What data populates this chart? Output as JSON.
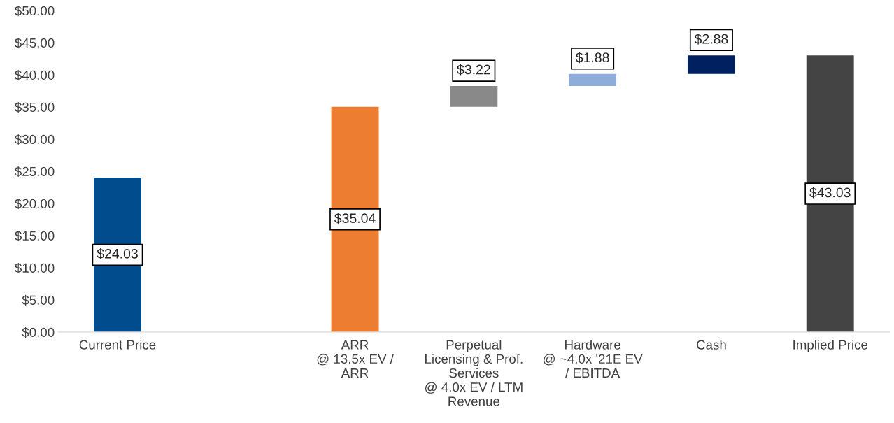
{
  "chart_data": {
    "type": "bar",
    "categories": [
      "Current Price",
      null,
      "ARR\n@ 13.5x EV /\nARR",
      "Perpetual\nLicensing & Prof.\nServices\n@ 4.0x EV / LTM\nRevenue",
      "Hardware\n@ ~4.0x '21E EV\n/ EBITDA",
      "Cash",
      "Implied Price"
    ],
    "values": [
      24.03,
      null,
      35.04,
      3.22,
      1.88,
      2.88,
      43.03
    ],
    "base": [
      0,
      null,
      0,
      35.04,
      38.26,
      40.14,
      0
    ],
    "colors": [
      "#004c8c",
      "#ffffff",
      "#ed7d31",
      "#898989",
      "#8eadd9",
      "#002060",
      "#444444"
    ],
    "value_labels": [
      "$24.03",
      null,
      "$35.04",
      "$3.22",
      "$1.88",
      "$2.88",
      "$43.03"
    ],
    "ylim": [
      0,
      50
    ],
    "yticks": [
      {
        "value": 0,
        "label": "$0.00"
      },
      {
        "value": 5,
        "label": "$5.00"
      },
      {
        "value": 10,
        "label": "$10.00"
      },
      {
        "value": 15,
        "label": "$15.00"
      },
      {
        "value": 20,
        "label": "$20.00"
      },
      {
        "value": 25,
        "label": "$25.00"
      },
      {
        "value": 30,
        "label": "$30.00"
      },
      {
        "value": 35,
        "label": "$35.00"
      },
      {
        "value": 40,
        "label": "$40.00"
      },
      {
        "value": 45,
        "label": "$45.00"
      },
      {
        "value": 50,
        "label": "$50.00"
      }
    ],
    "grid": false,
    "legend": false
  }
}
